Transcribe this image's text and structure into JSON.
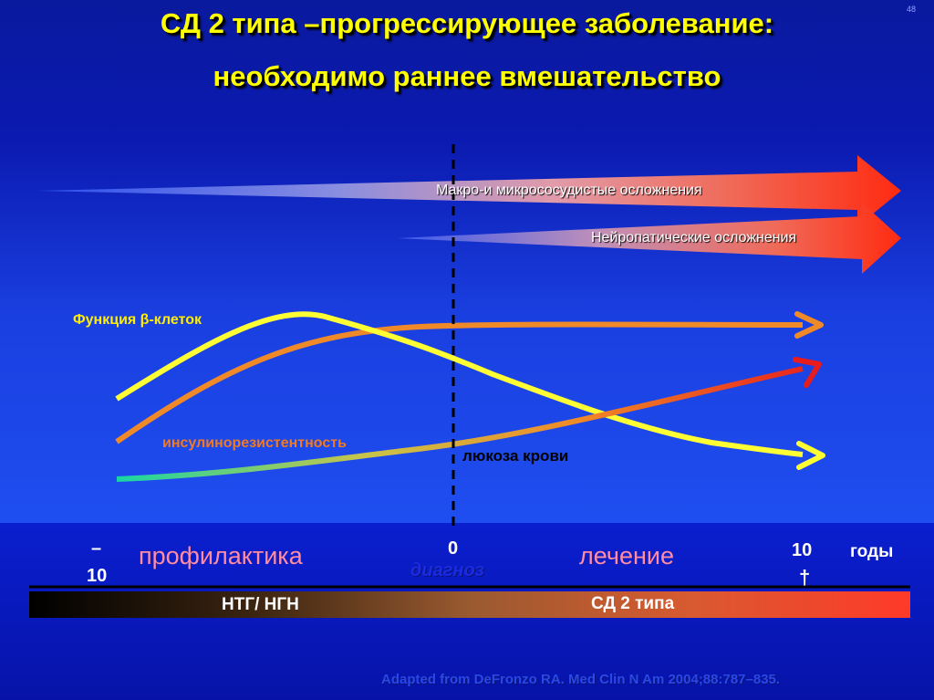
{
  "slide_number": "48",
  "title_line1": "СД 2 типа –прогрессирующее заболевание:",
  "title_line2": "необходимо  раннее вмешательство",
  "arrows": {
    "macro_micro": "Макро-и микрососудистые осложнения",
    "neuropathic": "Нейропатические осложнения"
  },
  "curves": {
    "beta_cell_function": "Функция β-клеток",
    "insulin_resistance": "инсулинорезистентность",
    "blood_glucose": "люкоза крови"
  },
  "timeline": {
    "minus_sign": "–",
    "minus_ten": "10",
    "zero": "0",
    "ten": "10",
    "dagger": "†",
    "years_label": "годы",
    "prevention": "профилактика",
    "treatment": "лечение",
    "diagnosis": "диагноз"
  },
  "bar": {
    "ntg_ngn": "НТГ/ НГН",
    "t2dm": "СД 2 типа"
  },
  "reference": "Adapted from DeFronzo RA. Med Clin N Am 2004;88:787–835.",
  "colors": {
    "title": "#ffff00",
    "beta_curve": "#ffff33",
    "insulin_curve": "#f08a28",
    "glucose_curve_start": "#1bd6a0",
    "glucose_curve_end": "#e02020",
    "complication_arrow": "#f03018"
  }
}
